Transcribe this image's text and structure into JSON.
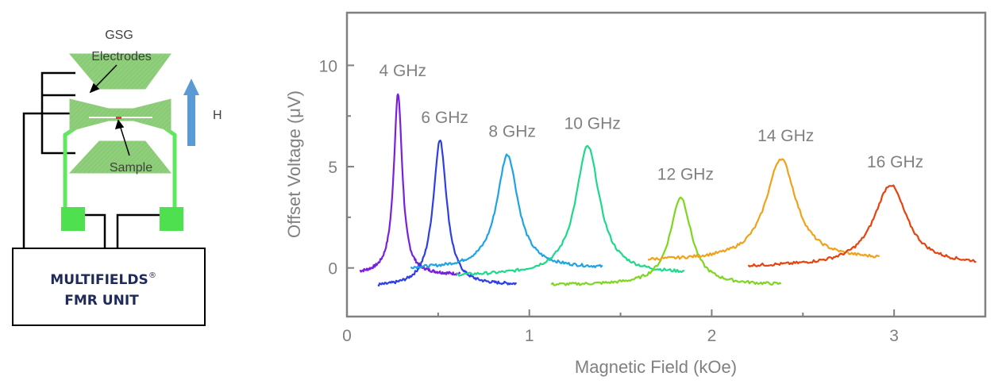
{
  "diagram": {
    "electrodes_label_line1": "GSG",
    "electrodes_label_line2": "Electrodes",
    "sample_label": "Sample",
    "field_label": "H",
    "unit_line1": "MULTIFIELDS",
    "unit_reg": "®",
    "unit_line2": "FMR UNIT",
    "colors": {
      "electrode": "#8fce7a",
      "sample": "#e53935",
      "wire_green": "#5ee85e",
      "pad_green": "#4ee04e",
      "arrow": "#5b9bd5"
    }
  },
  "chart_data": {
    "type": "line",
    "xlabel": "Magnetic Field (kOe)",
    "ylabel": "Offset Voltage (μV)",
    "xlim": [
      0,
      3.5
    ],
    "ylim": [
      -2.4,
      12.6
    ],
    "xticks": [
      0,
      1,
      2,
      3
    ],
    "yticks": [
      0,
      5,
      10
    ],
    "grid": false,
    "series": [
      {
        "name": "4 GHz",
        "color": "#7a1fe0",
        "x0": 0.28,
        "peak": 8.6,
        "base_left": -0.3,
        "base_right": -0.35,
        "width": 0.028,
        "xmin": 0.07,
        "xmax": 0.62
      },
      {
        "name": "6 GHz",
        "color": "#2d3fe6",
        "x0": 0.51,
        "peak": 6.3,
        "base_left": -0.95,
        "base_right": -0.85,
        "width": 0.045,
        "xmin": 0.17,
        "xmax": 0.93
      },
      {
        "name": "8 GHz",
        "color": "#1fa3e6",
        "x0": 0.88,
        "peak": 5.6,
        "base_left": -0.05,
        "base_right": -0.02,
        "width": 0.07,
        "xmin": 0.35,
        "xmax": 1.4
      },
      {
        "name": "10 GHz",
        "color": "#1ed98a",
        "x0": 1.32,
        "peak": 6.0,
        "base_left": -0.4,
        "base_right": -0.3,
        "width": 0.08,
        "xmin": 0.6,
        "xmax": 1.85
      },
      {
        "name": "12 GHz",
        "color": "#7ed61f",
        "x0": 1.83,
        "peak": 3.5,
        "base_left": -0.85,
        "base_right": -0.85,
        "width": 0.07,
        "xmin": 1.12,
        "xmax": 2.38
      },
      {
        "name": "14 GHz",
        "color": "#f0a21a",
        "x0": 2.38,
        "peak": 5.4,
        "base_left": 0.35,
        "base_right": 0.4,
        "width": 0.1,
        "xmin": 1.65,
        "xmax": 2.92
      },
      {
        "name": "16 GHz",
        "color": "#e8420f",
        "x0": 2.98,
        "peak": 4.1,
        "base_left": 0.05,
        "base_right": 0.15,
        "width": 0.11,
        "xmin": 2.2,
        "xmax": 3.45
      }
    ]
  }
}
